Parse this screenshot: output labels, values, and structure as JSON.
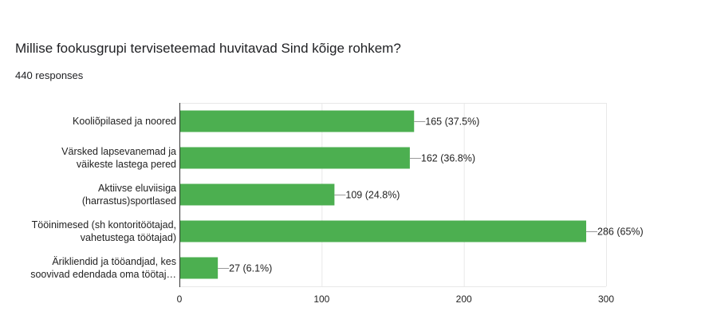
{
  "question": {
    "title": "Millise fookusgrupi terviseteemad huvitavad Sind kõige rohkem?",
    "responses": "440 responses"
  },
  "colors": {
    "bar": "#4caf50",
    "grid": "#e8e8e8",
    "axis": "#333333",
    "leader": "#999999"
  },
  "chart_data": {
    "type": "bar",
    "orientation": "horizontal",
    "categories": [
      [
        "Kooliõpilased ja noored"
      ],
      [
        "Värsked lapsevanemad ja",
        "väikeste lastega pered"
      ],
      [
        "Aktiivse eluviisiga",
        "(harrastus)sportlased"
      ],
      [
        "Tööinimesed (sh kontoritöötajad,",
        "vahetustega töötajad)"
      ],
      [
        "Ärikliendid ja tööandjad, kes",
        "soovivad edendada oma töötaj…"
      ]
    ],
    "values": [
      165,
      162,
      109,
      286,
      27
    ],
    "data_labels": [
      "165 (37.5%)",
      "162 (36.8%)",
      "109 (24.8%)",
      "286 (65%)",
      "27 (6.1%)"
    ],
    "xlim": [
      0,
      300
    ],
    "xticks": [
      0,
      100,
      200,
      300
    ],
    "xlabel": "",
    "ylabel": "",
    "grid": true,
    "legend": false
  }
}
